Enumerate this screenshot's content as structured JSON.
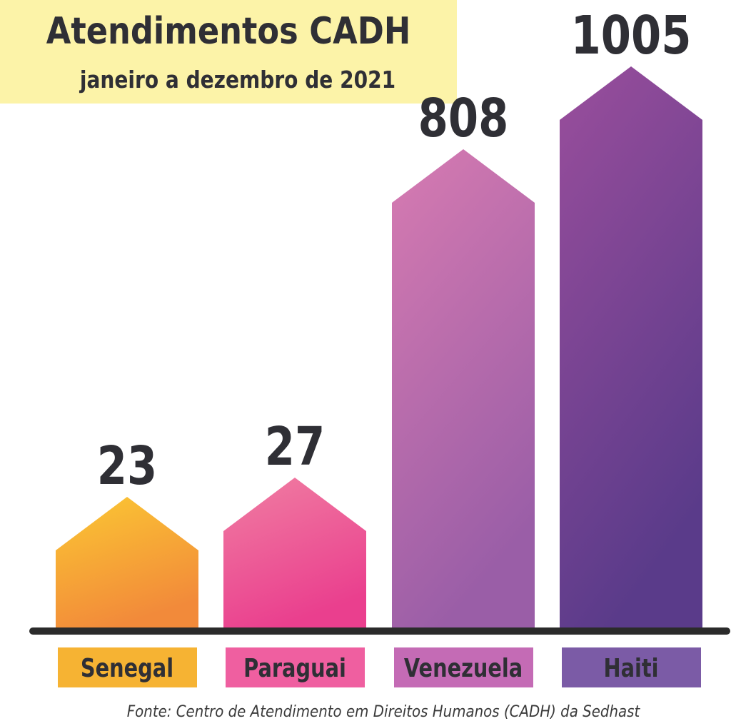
{
  "header": {
    "title": "Atendimentos CADH",
    "subtitle": "janeiro a dezembro de 2021"
  },
  "footer": {
    "source": "Fonte: Centro de Atendimento em Direitos Humanos (CADH) da Sedhast"
  },
  "colors": {
    "title_bg": "#fcf3a8",
    "text_dark": "#2f2f35",
    "baseline": "#2b2b2b"
  },
  "chart_data": {
    "type": "bar",
    "title": "Atendimentos CADH",
    "subtitle": "janeiro a dezembro de 2021",
    "categories": [
      "Senegal",
      "Paraguai",
      "Venezuela",
      "Haiti"
    ],
    "values": [
      23,
      27,
      808,
      1005
    ],
    "bar_shape": "house/arrow",
    "grid": false,
    "legend": "none",
    "bar_colors": [
      {
        "top": "#fbc833",
        "bottom": "#f28a3a"
      },
      {
        "top": "#f07ea2",
        "bottom": "#ea3f8e"
      },
      {
        "top": "#d77bb1",
        "bottom": "#9a5ea7"
      },
      {
        "top": "#9a4e9c",
        "bottom": "#5a3b8a"
      }
    ],
    "label_bg_colors": [
      "#f6b333",
      "#ef5fa0",
      "#c46bb5",
      "#7b5ba6"
    ]
  }
}
